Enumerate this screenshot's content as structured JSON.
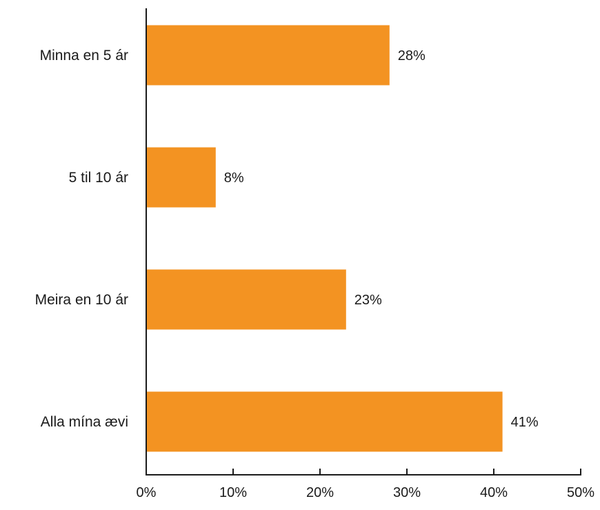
{
  "chart_data": {
    "type": "bar",
    "orientation": "horizontal",
    "categories": [
      "Minna en 5 ár",
      "5 til 10 ár",
      "Meira en 10 ár",
      "Alla mína ævi"
    ],
    "values": [
      28,
      8,
      23,
      41
    ],
    "value_labels": [
      "28%",
      "8%",
      "23%",
      "41%"
    ],
    "title": "",
    "xlabel": "",
    "ylabel": "",
    "xlim": [
      0,
      50
    ],
    "x_ticks": [
      0,
      10,
      20,
      30,
      40,
      50
    ],
    "x_tick_labels": [
      "0%",
      "10%",
      "20%",
      "30%",
      "40%",
      "50%"
    ],
    "grid": false,
    "legend": "none",
    "bar_color": "#F39322",
    "axis_color": "#1a1a1a"
  }
}
